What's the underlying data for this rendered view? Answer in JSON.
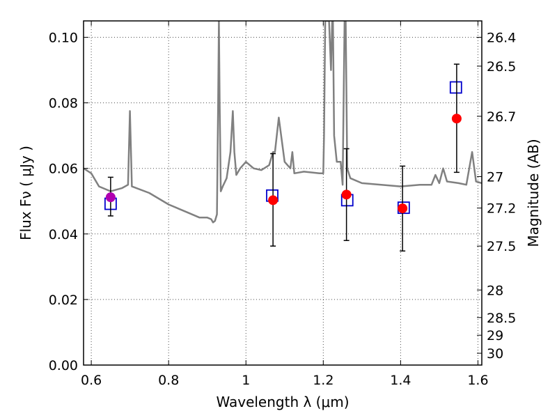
{
  "chart_data": {
    "type": "scatter",
    "title": "",
    "xlabel": "Wavelength  λ (μm)",
    "ylabel": "Flux  Fν  ( μJy )",
    "y2label": "Magnitude (AB)",
    "xlim": [
      0.58,
      1.61
    ],
    "ylim": [
      0.0,
      0.105
    ],
    "grid": true,
    "x_ticks": [
      0.6,
      0.8,
      1.0,
      1.2,
      1.4,
      1.6
    ],
    "x_tick_labels": [
      "0.6",
      "0.8",
      "1",
      "1.2",
      "1.4",
      "1.6"
    ],
    "y_ticks": [
      0.0,
      0.02,
      0.04,
      0.06,
      0.08,
      0.1
    ],
    "y_tick_labels": [
      "0.00",
      "0.02",
      "0.04",
      "0.06",
      "0.08",
      "0.10"
    ],
    "y2_ticks": [
      {
        "label": "26.4",
        "flux": 0.1
      },
      {
        "label": "26.5",
        "flux": 0.0912
      },
      {
        "label": "26.7",
        "flux": 0.0759
      },
      {
        "label": "27",
        "flux": 0.0575
      },
      {
        "label": "27.2",
        "flux": 0.0479
      },
      {
        "label": "27.5",
        "flux": 0.0363
      },
      {
        "label": "28",
        "flux": 0.0229
      },
      {
        "label": "28.5",
        "flux": 0.0145
      },
      {
        "label": "29",
        "flux": 0.0091
      },
      {
        "label": "30",
        "flux": 0.0036
      }
    ],
    "series": [
      {
        "name": "observed",
        "style": "red-circle",
        "color": "#ff0000",
        "x": [
          1.07,
          1.26,
          1.405,
          1.545
        ],
        "y": [
          0.0503,
          0.052,
          0.0478,
          0.0752
        ],
        "yerr_low": [
          0.0363,
          0.038,
          0.0348,
          0.0588
        ],
        "yerr_high": [
          0.0645,
          0.066,
          0.0607,
          0.0918
        ]
      },
      {
        "name": "observed-optical",
        "style": "magenta-circle",
        "color": "#b000b0",
        "x": [
          0.65
        ],
        "y": [
          0.0512
        ],
        "yerr_low": [
          0.0455
        ],
        "yerr_high": [
          0.0573
        ]
      },
      {
        "name": "model-bandpass",
        "style": "blue-square",
        "color": "#0000cc",
        "x": [
          0.65,
          1.068,
          1.262,
          1.408,
          1.543
        ],
        "y": [
          0.0492,
          0.0517,
          0.0503,
          0.048,
          0.0847
        ]
      },
      {
        "name": "model-spectrum",
        "style": "gray-line",
        "color": "#808080",
        "x": [
          0.58,
          0.6,
          0.62,
          0.65,
          0.68,
          0.695,
          0.7,
          0.705,
          0.75,
          0.8,
          0.85,
          0.88,
          0.9,
          0.91,
          0.915,
          0.92,
          0.925,
          0.928,
          0.93,
          0.932,
          0.935,
          0.94,
          0.95,
          0.96,
          0.966,
          0.97,
          0.975,
          0.985,
          1.0,
          1.02,
          1.04,
          1.06,
          1.07,
          1.075,
          1.085,
          1.1,
          1.115,
          1.12,
          1.125,
          1.15,
          1.19,
          1.2,
          1.202,
          1.205,
          1.208,
          1.215,
          1.22,
          1.223,
          1.225,
          1.228,
          1.235,
          1.245,
          1.25,
          1.255,
          1.258,
          1.262,
          1.27,
          1.3,
          1.35,
          1.4,
          1.45,
          1.48,
          1.49,
          1.5,
          1.51,
          1.52,
          1.55,
          1.57,
          1.585,
          1.595,
          1.61
        ],
        "y": [
          0.06,
          0.0585,
          0.0545,
          0.053,
          0.054,
          0.055,
          0.0775,
          0.0545,
          0.0525,
          0.049,
          0.0465,
          0.045,
          0.045,
          0.0445,
          0.0435,
          0.044,
          0.046,
          0.08,
          0.105,
          0.08,
          0.053,
          0.0545,
          0.057,
          0.065,
          0.0775,
          0.065,
          0.058,
          0.06,
          0.062,
          0.06,
          0.0595,
          0.061,
          0.065,
          0.065,
          0.0755,
          0.062,
          0.06,
          0.065,
          0.0585,
          0.059,
          0.0585,
          0.0585,
          0.07,
          0.105,
          0.105,
          0.105,
          0.09,
          0.105,
          0.105,
          0.07,
          0.062,
          0.062,
          0.055,
          0.105,
          0.105,
          0.06,
          0.057,
          0.0555,
          0.055,
          0.0545,
          0.055,
          0.055,
          0.058,
          0.0555,
          0.06,
          0.056,
          0.0555,
          0.055,
          0.065,
          0.056,
          0.0555
        ]
      }
    ]
  }
}
